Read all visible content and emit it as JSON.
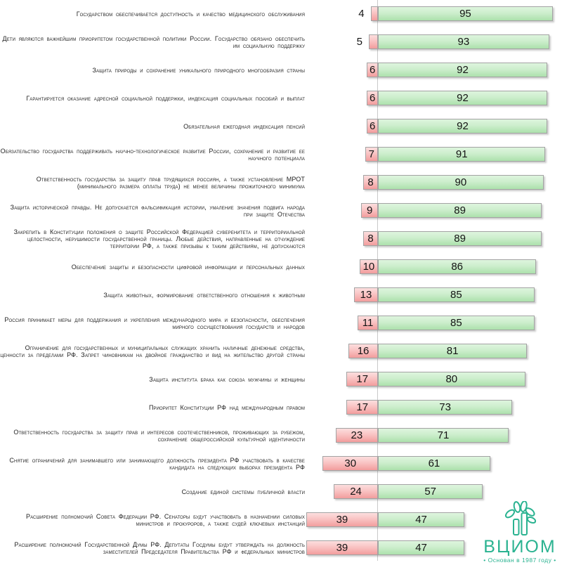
{
  "chart_data": {
    "type": "bar",
    "variant": "horizontal-diverging",
    "zero_line": true,
    "legend_position": "none",
    "title": "",
    "xlabel": "",
    "ylabel": "",
    "categories": [
      "Государством обеспечивается доступность и качество медицинского обслуживания",
      "Дети являются важнейшим приоритетом государственной политики России. Государство обязано обеспечить им социальную поддержку",
      "Защита природы и сохранение уникального природного многообразия страны",
      "Гарантируется оказание адресной социальной поддержки, индексация социальных пособий и выплат",
      "Обязательная ежегодная индексация пенсий",
      "Обязательство государства поддерживать научно-технологическое развитие России, сохранение и развитие ее научного потенциала",
      "Ответственность государства за защиту прав трудящихся россиян, а также установление МРОТ (минимального размера оплаты труда) не менее величины прожиточного минимума",
      "Защита исторической правды. Не допускается фальсификация истории, умаление значения подвига народа при защите Отечества",
      "Закрепить в Конституции положения о защите Российской Федерацией суверенитета и территориальной целостности, нерушимости государственной границы. Любые действия, направленные на отчуждение территории РФ, а также призывы к таким действиям, не допускаются",
      "Обеспечение защиты и безопасности цифровой информации и персональных данных",
      "Защита животных, формирование ответственного отношения к животным",
      "Россия принимает меры для поддержания и укрепления международного мира и безопасности, обеспечения мирного сосуществования государств и народов",
      "Ограничение для государственных и муниципальных служащих хранить наличные денежные средства, ценности за пределами РФ. Запрет чиновникам на двойное гражданство и вид на жительство другой страны",
      "Защита института брака как союза мужчины и женщины",
      "Приоритет Конституции РФ над международным правом",
      "Ответственность государства за защиту прав и интересов соотечественников, проживающих за рубежом, сохранение общероссийской культурной идентичности",
      "Снятие ограничений для занимавшего или занимающего должность президента РФ участвовать в качестве кандидата на следующих выборах президента РФ",
      "Создание единой системы публичной власти",
      "Расширение полномочий Совета Федерации РФ. Сенаторы будут участвовать в назначении силовых министров и прокуроров, а также судей ключевых инстанций",
      "Расширение полномочий Государственной Думы РФ. Депутаты Госдумы будут утверждать на должность заместителей Председателя Правительства РФ и федеральных министров"
    ],
    "series": [
      {
        "name": "red",
        "color": "#f5a2a2",
        "values": [
          4,
          5,
          6,
          6,
          6,
          7,
          8,
          9,
          8,
          10,
          13,
          11,
          16,
          17,
          17,
          23,
          30,
          24,
          39,
          39
        ]
      },
      {
        "name": "green",
        "color": "#bce8bc",
        "values": [
          95,
          93,
          92,
          92,
          92,
          91,
          90,
          89,
          89,
          86,
          85,
          85,
          81,
          80,
          73,
          71,
          61,
          57,
          47,
          47
        ]
      }
    ]
  },
  "logo": {
    "name": "ВЦИОМ",
    "tagline": "• Основан в 1987 году •",
    "color": "#2bb391"
  },
  "colors": {
    "red_bar": "#f5a2a2",
    "green_bar": "#bce8bc",
    "axis_line": "#c9c9c9",
    "text": "#222222",
    "bar_border": "#a3a3a3"
  }
}
